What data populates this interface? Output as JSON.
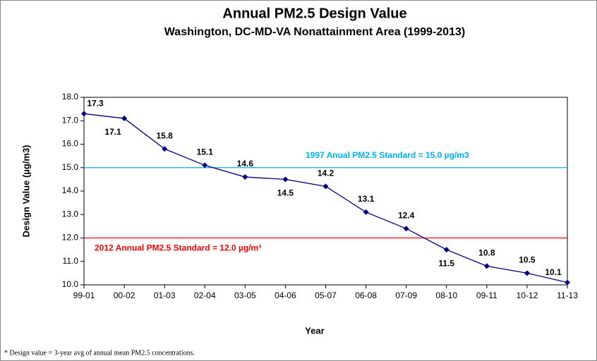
{
  "chart_data": {
    "type": "line",
    "title": "Annual PM2.5 Design Value",
    "subtitle": "Washington, DC-MD-VA Nonattainment Area (1999-2013)",
    "x_label": "Year",
    "y_label": "Design Value (µg/m3)",
    "categories": [
      "99-01",
      "00-02",
      "01-03",
      "02-04",
      "03-05",
      "04-06",
      "05-07",
      "06-08",
      "07-09",
      "08-10",
      "09-11",
      "10-12",
      "11-13"
    ],
    "values": [
      17.3,
      17.1,
      15.8,
      15.1,
      14.6,
      14.5,
      14.2,
      13.1,
      12.4,
      11.5,
      10.8,
      10.5,
      10.1
    ],
    "color": "#000080",
    "ylim": [
      10,
      18
    ],
    "yticks": [
      {
        "value": 10,
        "label": "10.0"
      },
      {
        "value": 11,
        "label": "11.0"
      },
      {
        "value": 12,
        "label": "12.0"
      },
      {
        "value": 13,
        "label": "13.0"
      },
      {
        "value": 14,
        "label": "14.0"
      },
      {
        "value": 15,
        "label": "15.0"
      },
      {
        "value": 16,
        "label": "16.0"
      },
      {
        "value": 17,
        "label": "17.0"
      },
      {
        "value": 18,
        "label": "18.0"
      }
    ],
    "reference_lines": [
      {
        "value": 15,
        "label": "1997 Anual PM2.5 Standard =  15.0 µg/m3",
        "color": "#00b0f0"
      },
      {
        "value": 12,
        "label": "2012 Annual PM2.5 Standard = 12.0 µg/m³",
        "color": "#ff0000"
      }
    ],
    "footnote": "* Design value = 3-year avg of annual  mean PM2.5 concentrations."
  }
}
